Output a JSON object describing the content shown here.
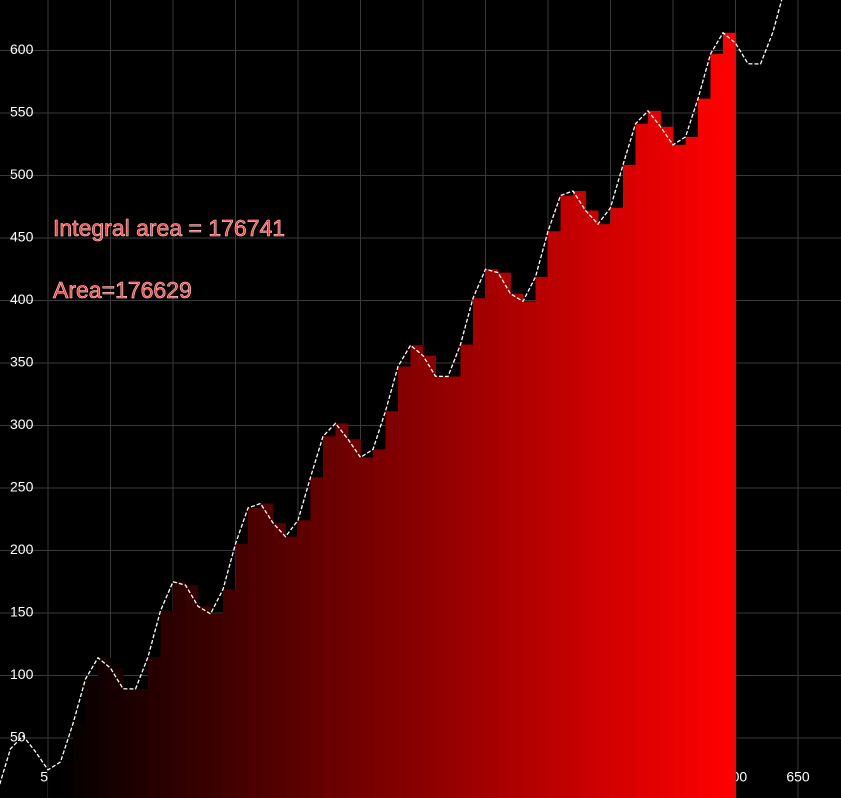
{
  "chart_data": {
    "type": "area",
    "annotations": [
      "Integral area = 176741",
      "Area=176629"
    ],
    "x": [
      10,
      20,
      30,
      40,
      50,
      60,
      70,
      80,
      90,
      100,
      110,
      120,
      130,
      140,
      150,
      160,
      170,
      180,
      190,
      200,
      210,
      220,
      230,
      240,
      250,
      260,
      270,
      280,
      290,
      300,
      310,
      320,
      330,
      340,
      350,
      360,
      370,
      380,
      390,
      400,
      410,
      420,
      430,
      440,
      450,
      460,
      470,
      480,
      490,
      500,
      510,
      520,
      530,
      540,
      550,
      560,
      570,
      580,
      590,
      600,
      610,
      620,
      630,
      640,
      650,
      660,
      670,
      680
    ],
    "values": [
      8.5,
      41.4,
      51.7,
      39.0,
      24.5,
      30.9,
      61.5,
      97.2,
      114.2,
      105.9,
      89.4,
      89.2,
      114.8,
      151.8,
      175,
      172.3,
      155.4,
      149.3,
      168.9,
      205.4,
      234,
      237.6,
      222,
      211.1,
      224.2,
      258.5,
      291.4,
      301.7,
      289,
      274.5,
      280.9,
      311.5,
      347.2,
      364.2,
      355.9,
      339.4,
      339.2,
      364.8,
      401.8,
      425,
      422.3,
      405.4,
      399.3,
      418.9,
      455.4,
      484,
      487.6,
      472,
      461.1,
      474.2,
      508.5,
      541.4,
      551.7,
      539,
      524.5,
      530.9,
      561.5,
      597.2,
      614.2,
      605.9,
      589.4,
      589.2,
      614.8,
      651.8,
      675,
      672.3,
      655.4,
      649.3
    ],
    "fill_range": [
      50,
      600
    ],
    "color": "#ff0000",
    "line_color": "#ffffff",
    "xlim": [
      11.6,
      684.4
    ],
    "ylim": [
      2,
      640.4
    ],
    "xticks": [
      50,
      100,
      150,
      200,
      250,
      300,
      350,
      400,
      450,
      500,
      550,
      600,
      650
    ],
    "yticks": [
      50,
      100,
      150,
      200,
      250,
      300,
      350,
      400,
      450,
      500,
      550,
      600
    ],
    "grid": true
  }
}
